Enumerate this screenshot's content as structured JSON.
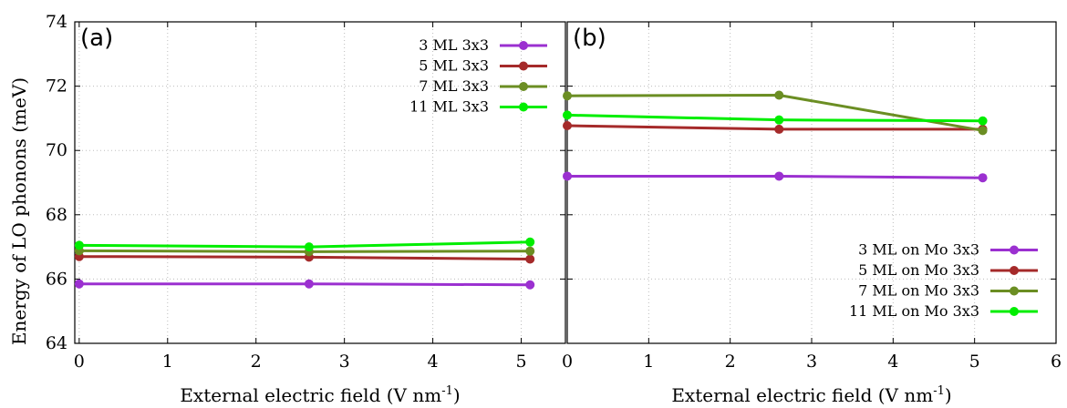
{
  "chart_data": {
    "type": "line",
    "ylabel": "Energy of LO phonons (meV)",
    "ylim": [
      64,
      74
    ],
    "yticks": [
      "64",
      "66",
      "68",
      "70",
      "72",
      "74"
    ],
    "grid": true,
    "panels": [
      {
        "label": "(a)",
        "xlabel": "External electric field (V nm",
        "xlabel_sup": "-1",
        "xlabel_end": ")",
        "xlim": [
          -0.05,
          5.5
        ],
        "xticks": [
          "0",
          "1",
          "2",
          "3",
          "4",
          "5"
        ],
        "legend_position": "top-right",
        "series": [
          {
            "name": "3 ML 3x3",
            "color": "#9b30d0",
            "x": [
              0,
              2.6,
              5.1
            ],
            "y": [
              65.85,
              65.85,
              65.82
            ]
          },
          {
            "name": "5 ML 3x3",
            "color": "#a52a2a",
            "x": [
              0,
              2.6,
              5.1
            ],
            "y": [
              66.7,
              66.68,
              66.62
            ]
          },
          {
            "name": "7 ML 3x3",
            "color": "#6b8e23",
            "x": [
              0,
              2.6,
              5.1
            ],
            "y": [
              66.88,
              66.85,
              66.87
            ]
          },
          {
            "name": "11 ML 3x3",
            "color": "#00ee00",
            "x": [
              0,
              2.6,
              5.1
            ],
            "y": [
              67.05,
              67.0,
              67.15
            ]
          }
        ]
      },
      {
        "label": "(b)",
        "xlabel": "External electric field (V nm",
        "xlabel_sup": "-1",
        "xlabel_end": ")",
        "xlim": [
          0,
          6
        ],
        "xticks": [
          "0",
          "1",
          "2",
          "3",
          "4",
          "5",
          "6"
        ],
        "legend_position": "bottom-right",
        "series": [
          {
            "name": "3 ML on Mo 3x3",
            "color": "#9b30d0",
            "x": [
              0,
              2.6,
              5.1
            ],
            "y": [
              69.2,
              69.2,
              69.15
            ]
          },
          {
            "name": "5 ML on Mo 3x3",
            "color": "#a52a2a",
            "x": [
              0,
              2.6,
              5.1
            ],
            "y": [
              70.77,
              70.66,
              70.66
            ]
          },
          {
            "name": "7 ML on Mo 3x3",
            "color": "#6b8e23",
            "x": [
              0,
              2.6,
              5.1
            ],
            "y": [
              71.7,
              71.72,
              70.62
            ]
          },
          {
            "name": "11 ML on Mo 3x3",
            "color": "#00ee00",
            "x": [
              0,
              2.6,
              5.1
            ],
            "y": [
              71.1,
              70.95,
              70.92
            ]
          }
        ]
      }
    ]
  }
}
